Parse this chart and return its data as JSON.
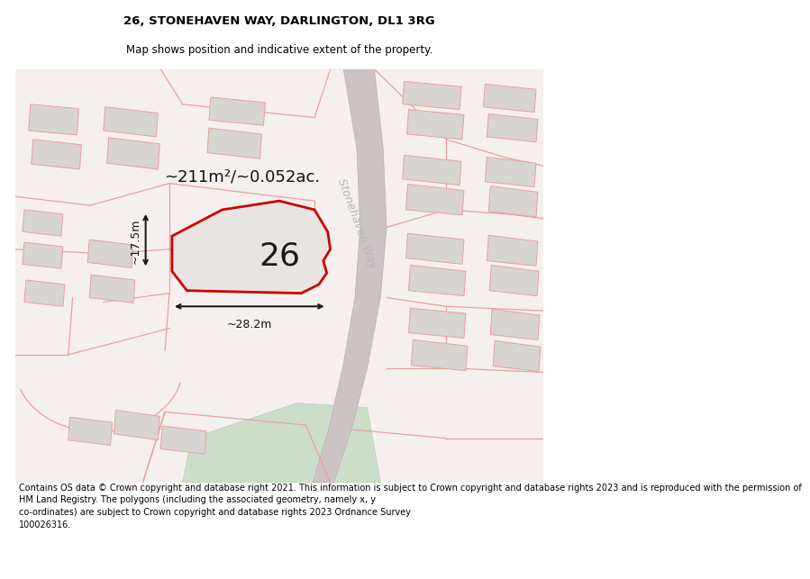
{
  "title": "26, STONEHAVEN WAY, DARLINGTON, DL1 3RG",
  "subtitle": "Map shows position and indicative extent of the property.",
  "footer": "Contains OS data © Crown copyright and database right 2021. This information is subject to Crown copyright and database rights 2023 and is reproduced with the permission of\nHM Land Registry. The polygons (including the associated geometry, namely x, y\nco-ordinates) are subject to Crown copyright and database rights 2023 Ordnance Survey\n100026316.",
  "area_label": "~211m²/~0.052ac.",
  "width_label": "~28.2m",
  "height_label": "~17.5m",
  "plot_number": "26",
  "road_label": "Stonehaven Way",
  "bg_color": "#f5f0ee",
  "plot_fill": "#e8e4e2",
  "plot_edge": "#cc0000",
  "bld_fill": "#d8d4d2",
  "boundary_color": "#e8a0a0",
  "dim_color": "#1a1a1a",
  "road_label_color": "#b8b8b8",
  "green_fill": "#cddec8",
  "road_fill": "#ccc4c4",
  "title_fontsize": 9.5,
  "subtitle_fontsize": 8.5,
  "footer_fontsize": 7.0,
  "label_fontsize": 13,
  "number_fontsize": 26,
  "dim_fontsize": 9,
  "road_fontsize": 9
}
